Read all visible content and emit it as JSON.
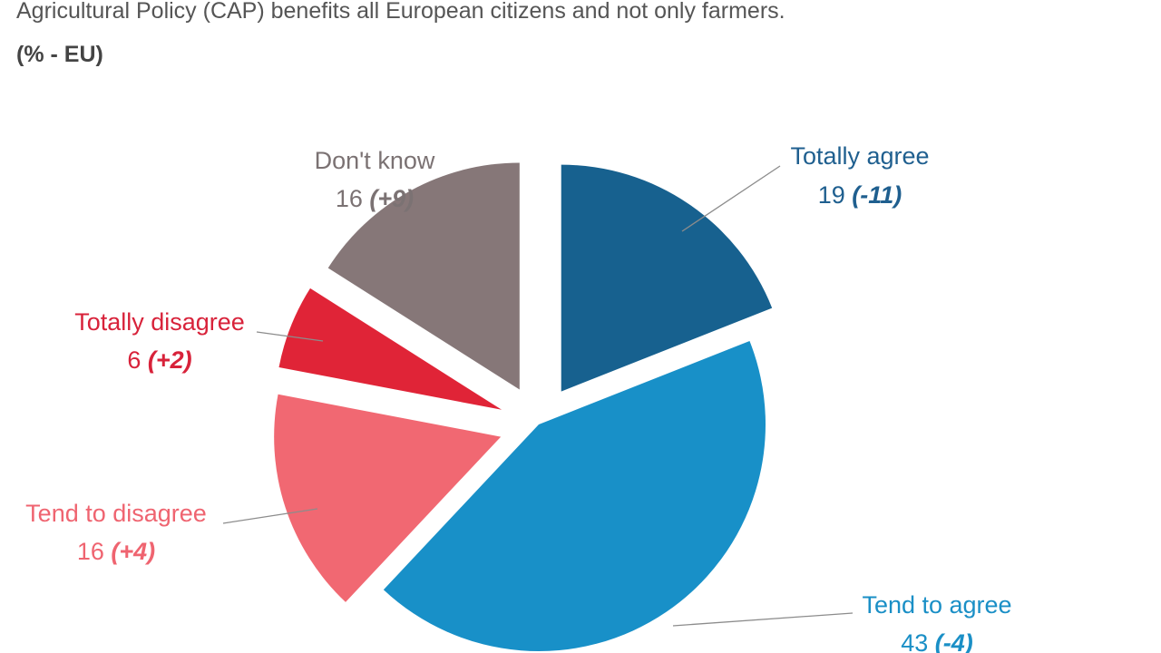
{
  "header": {
    "title": "Agricultural Policy (CAP) benefits all European citizens and not only farmers.",
    "subtitle": "(% - EU)"
  },
  "chart_data": {
    "type": "pie",
    "start": "12 o'clock, clockwise",
    "legend": "none (labels on slices)",
    "slices": [
      {
        "label": "Totally agree",
        "value": 19,
        "change": "(-11)",
        "color": "#17618f",
        "label_color": "#1f5f8f",
        "exploded": true
      },
      {
        "label": "Tend to agree",
        "value": 43,
        "change": "(-4)",
        "color": "#1890c8",
        "label_color": "#1a8fc6",
        "exploded": false
      },
      {
        "label": "Tend to disagree",
        "value": 16,
        "change": "(+4)",
        "color": "#f16872",
        "label_color": "#ef6470",
        "exploded": true
      },
      {
        "label": "Totally disagree",
        "value": 6,
        "change": "(+2)",
        "color": "#e02437",
        "label_color": "#d8223a",
        "exploded": true
      },
      {
        "label": "Don't know",
        "value": 16,
        "change": "(+9)",
        "color": "#867778",
        "label_color": "#7b7273",
        "exploded": true
      }
    ]
  }
}
